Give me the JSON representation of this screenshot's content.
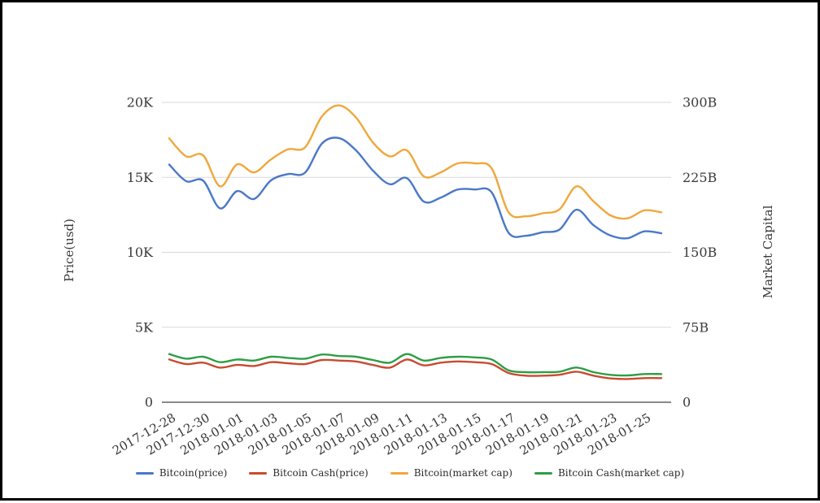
{
  "chart_data": {
    "type": "line",
    "smooth": true,
    "grid": true,
    "legend_position": "bottom",
    "x": [
      "2017-12-28",
      "2017-12-29",
      "2017-12-30",
      "2017-12-31",
      "2018-01-01",
      "2018-01-02",
      "2018-01-03",
      "2018-01-04",
      "2018-01-05",
      "2018-01-06",
      "2018-01-07",
      "2018-01-08",
      "2018-01-09",
      "2018-01-10",
      "2018-01-11",
      "2018-01-12",
      "2018-01-13",
      "2018-01-14",
      "2018-01-15",
      "2018-01-16",
      "2018-01-17",
      "2018-01-18",
      "2018-01-19",
      "2018-01-20",
      "2018-01-21",
      "2018-01-22",
      "2018-01-23",
      "2018-01-24",
      "2018-01-25",
      "2018-01-26"
    ],
    "x_ticks_every": 2,
    "left_axis": {
      "title": "Price(usd)",
      "ticks": [
        "0",
        "5K",
        "10K",
        "15K",
        "20K"
      ],
      "tick_values": [
        0,
        5000,
        10000,
        15000,
        20000
      ],
      "max": 20000
    },
    "right_axis": {
      "title": "Market Capital",
      "ticks": [
        "0",
        "75B",
        "150B",
        "225B",
        "300B"
      ],
      "tick_values": [
        0,
        75,
        150,
        225,
        300
      ],
      "max": 300
    },
    "series": [
      {
        "name": "Bitcoin(price)",
        "axis": "left",
        "color": "#4a78c8",
        "values": [
          15856,
          14750,
          14780,
          12930,
          14080,
          13560,
          14800,
          15220,
          15310,
          17260,
          17620,
          16810,
          15460,
          14540,
          14950,
          13380,
          13650,
          14190,
          14190,
          14000,
          11300,
          11100,
          11340,
          11520,
          12840,
          11810,
          11120,
          10940,
          11400,
          11270
        ]
      },
      {
        "name": "Bitcoin Cash(price)",
        "axis": "left",
        "color": "#c74b30",
        "values": [
          2850,
          2550,
          2640,
          2310,
          2490,
          2420,
          2670,
          2600,
          2550,
          2820,
          2780,
          2720,
          2490,
          2310,
          2850,
          2460,
          2640,
          2720,
          2670,
          2550,
          1950,
          1770,
          1770,
          1830,
          2040,
          1770,
          1590,
          1550,
          1610,
          1610
        ]
      },
      {
        "name": "Bitcoin(market cap)",
        "axis": "right",
        "color": "#f0a73c",
        "values": [
          264,
          246,
          247,
          216,
          238,
          230,
          243,
          253,
          255,
          286,
          297,
          285,
          260,
          246,
          252,
          226,
          230,
          239,
          239,
          234,
          190,
          186,
          189,
          193,
          216,
          201,
          187,
          184,
          192,
          190
        ]
      },
      {
        "name": "Bitcoin Cash(market cap)",
        "axis": "right",
        "color": "#2d9e45",
        "values": [
          48.2,
          43.6,
          45.5,
          40.1,
          42.8,
          41.7,
          45.5,
          44.4,
          43.6,
          47.7,
          46.3,
          45.5,
          42.3,
          39.6,
          48.2,
          41.7,
          44.4,
          45.5,
          44.9,
          42.8,
          31.9,
          30.1,
          30.1,
          30.6,
          34.7,
          30.1,
          27.4,
          26.8,
          28.2,
          28.2
        ]
      }
    ],
    "colors": {
      "gridline": "#d9d9d9",
      "axis_line": "#444444",
      "tick_text": "#3a3a3a"
    }
  }
}
